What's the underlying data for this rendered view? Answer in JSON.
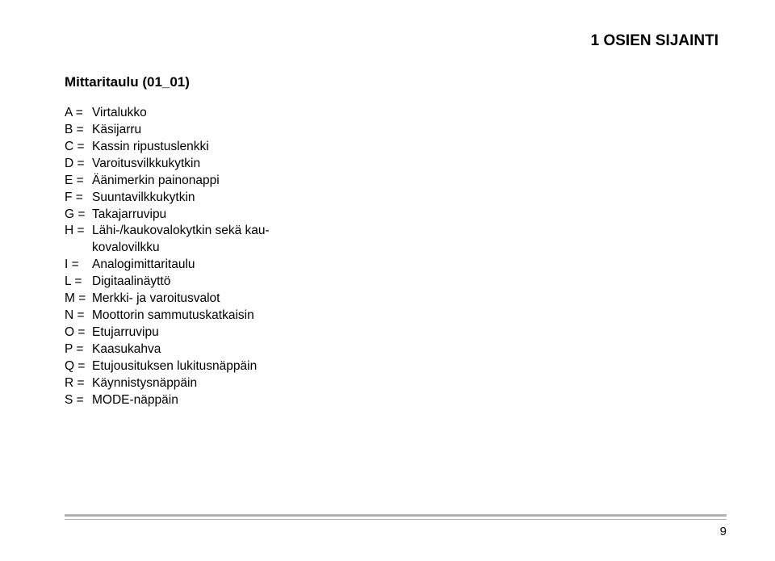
{
  "header": {
    "title": "1 OSIEN SIJAINTI"
  },
  "section": {
    "subtitle": "Mittaritaulu (01_01)"
  },
  "legend": [
    {
      "key": "A =",
      "val": "Virtalukko"
    },
    {
      "key": "B =",
      "val": "Käsijarru"
    },
    {
      "key": "C =",
      "val": "Kassin ripustuslenkki"
    },
    {
      "key": "D =",
      "val": "Varoitusvilkkukytkin"
    },
    {
      "key": "E =",
      "val": "Äänimerkin painonappi"
    },
    {
      "key": "F =",
      "val": "Suuntavilkkukytkin"
    },
    {
      "key": "G =",
      "val": "Takajarruvipu"
    },
    {
      "key": "H =",
      "val": "Lähi-/kaukovalokytkin sekä kau-",
      "cont": "kovalovilkku"
    },
    {
      "key": "I =",
      "val": "Analogimittaritaulu"
    },
    {
      "key": "L =",
      "val": "Digitaalinäyttö"
    },
    {
      "key": "M =",
      "val": "Merkki- ja varoitusvalot"
    },
    {
      "key": "N =",
      "val": "Moottorin sammutuskatkaisin"
    },
    {
      "key": "O =",
      "val": "Etujarruvipu"
    },
    {
      "key": "P =",
      "val": "Kaasukahva"
    },
    {
      "key": "Q =",
      "val": "Etujousituksen lukitusnäppäin"
    },
    {
      "key": "R =",
      "val": "Käynnistysnäppäin"
    },
    {
      "key": "S =",
      "val": "MODE-näppäin"
    }
  ],
  "footer": {
    "page": "9"
  },
  "style": {
    "page_bg": "#ffffff",
    "text_color": "#000000",
    "rule_color": "#b3b3b3",
    "header_fontsize": 19,
    "subtitle_fontsize": 17,
    "body_fontsize": 15.5,
    "pagenum_fontsize": 15
  }
}
